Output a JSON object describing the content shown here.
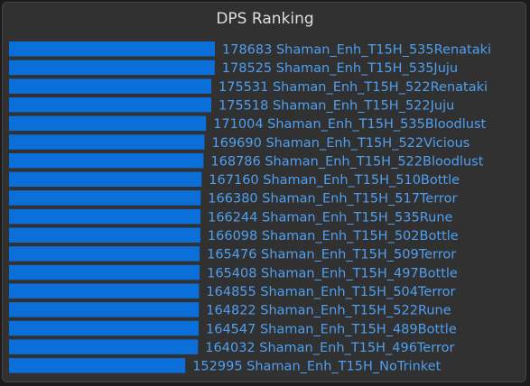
{
  "colors": {
    "bar": "#0a6fd9",
    "text": "#4f9ff0",
    "title": "#dedede",
    "panel": "#313131"
  },
  "chart_data": {
    "type": "bar",
    "orientation": "horizontal",
    "title": "DPS Ranking",
    "xlabel": "",
    "ylabel": "",
    "xlim": [
      0,
      178683
    ],
    "grid": false,
    "legend": "none",
    "data_labels": true,
    "categories": [
      "Shaman_Enh_T15H_535Renataki",
      "Shaman_Enh_T15H_535Juju",
      "Shaman_Enh_T15H_522Renataki",
      "Shaman_Enh_T15H_522Juju",
      "Shaman_Enh_T15H_535Bloodlust",
      "Shaman_Enh_T15H_522Vicious",
      "Shaman_Enh_T15H_522Bloodlust",
      "Shaman_Enh_T15H_510Bottle",
      "Shaman_Enh_T15H_517Terror",
      "Shaman_Enh_T15H_535Rune",
      "Shaman_Enh_T15H_502Bottle",
      "Shaman_Enh_T15H_509Terror",
      "Shaman_Enh_T15H_497Bottle",
      "Shaman_Enh_T15H_504Terror",
      "Shaman_Enh_T15H_522Rune",
      "Shaman_Enh_T15H_489Bottle",
      "Shaman_Enh_T15H_496Terror",
      "Shaman_Enh_T15H_NoTrinket"
    ],
    "values": [
      178683,
      178525,
      175531,
      175518,
      171004,
      169690,
      168786,
      167160,
      166380,
      166244,
      166098,
      165476,
      165408,
      164855,
      164822,
      164547,
      164032,
      152995
    ]
  }
}
